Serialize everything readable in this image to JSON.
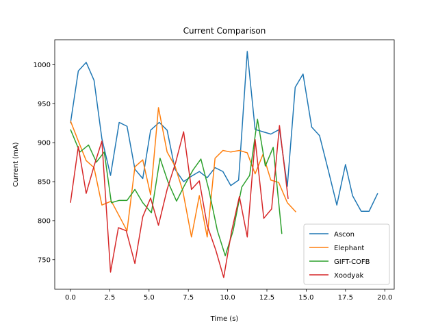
{
  "chart_data": {
    "type": "line",
    "title": "Current Comparison",
    "xlabel": "Time (s)",
    "ylabel": "Current (mA)",
    "xlim": [
      -1.0,
      20.6
    ],
    "ylim": [
      712,
      1032
    ],
    "xticks": [
      0.0,
      2.5,
      5.0,
      7.5,
      10.0,
      12.5,
      15.0,
      17.5,
      20.0
    ],
    "xtick_labels": [
      "0.0",
      "2.5",
      "5.0",
      "7.5",
      "10.0",
      "12.5",
      "15.0",
      "17.5",
      "20.0"
    ],
    "yticks": [
      750,
      800,
      850,
      900,
      950,
      1000
    ],
    "ytick_labels": [
      "750",
      "800",
      "850",
      "900",
      "950",
      "1000"
    ],
    "grid": false,
    "legend_position": "lower-right",
    "series": [
      {
        "name": "Ascon",
        "color": "#1f77b4",
        "x": [
          0.0,
          0.5,
          1.0,
          1.5,
          2.0,
          2.55,
          3.1,
          3.6,
          4.1,
          4.6,
          5.1,
          5.65,
          6.15,
          6.65,
          7.2,
          7.7,
          8.2,
          8.7,
          9.2,
          9.7,
          10.2,
          10.7,
          11.25,
          11.75,
          12.25,
          12.75,
          13.3,
          13.8,
          14.3,
          14.8,
          15.35,
          15.85,
          16.4,
          16.95,
          17.5,
          17.95,
          18.5,
          19.0,
          19.55
        ],
        "y": [
          925,
          992,
          1003,
          980,
          905,
          858,
          926,
          921,
          866,
          854,
          916,
          926,
          916,
          866,
          850,
          857,
          863,
          855,
          868,
          863,
          845,
          852,
          1017,
          917,
          914,
          911,
          917,
          844,
          971,
          988,
          920,
          909,
          865,
          820,
          872,
          832,
          812,
          812,
          835
        ]
      },
      {
        "name": "Elephant",
        "color": "#ff7f0e",
        "x": [
          0.0,
          0.5,
          1.0,
          1.5,
          2.0,
          2.6,
          3.1,
          3.6,
          4.1,
          4.6,
          5.1,
          5.6,
          6.15,
          6.65,
          7.15,
          7.7,
          8.2,
          8.7,
          9.2,
          9.7,
          10.2,
          10.75,
          11.25,
          11.75,
          12.25,
          12.75,
          13.25,
          13.8,
          14.35
        ],
        "y": [
          928,
          902,
          877,
          868,
          820,
          825,
          806,
          787,
          869,
          878,
          833,
          945,
          888,
          870,
          838,
          779,
          832,
          779,
          880,
          890,
          888,
          890,
          887,
          860,
          885,
          852,
          849,
          823,
          811
        ]
      },
      {
        "name": "GIFT-COFB",
        "color": "#2ca02c",
        "x": [
          0.0,
          0.6,
          1.15,
          1.65,
          2.15,
          2.6,
          3.1,
          3.6,
          4.1,
          4.6,
          5.15,
          5.7,
          6.2,
          6.75,
          7.25,
          7.8,
          8.3,
          8.8,
          9.35,
          9.85,
          10.35,
          10.9,
          11.4,
          11.9,
          12.4,
          12.9,
          13.45
        ],
        "y": [
          917,
          888,
          897,
          875,
          888,
          823,
          826,
          826,
          840,
          823,
          810,
          880,
          850,
          825,
          845,
          865,
          879,
          840,
          787,
          755,
          787,
          843,
          858,
          930,
          870,
          894,
          783
        ]
      },
      {
        "name": "Xoodyak",
        "color": "#d62728",
        "x": [
          0.0,
          0.5,
          1.0,
          1.5,
          2.0,
          2.55,
          3.05,
          3.55,
          4.1,
          4.6,
          5.1,
          5.6,
          6.15,
          6.7,
          7.2,
          7.7,
          8.2,
          8.7,
          9.25,
          9.75,
          10.25,
          10.75,
          11.25,
          11.75,
          12.3,
          12.8,
          13.3,
          13.85
        ],
        "y": [
          823,
          895,
          835,
          870,
          902,
          734,
          791,
          787,
          745,
          805,
          829,
          794,
          840,
          875,
          914,
          840,
          851,
          794,
          762,
          727,
          786,
          831,
          779,
          904,
          803,
          815,
          922,
          828
        ]
      }
    ]
  }
}
